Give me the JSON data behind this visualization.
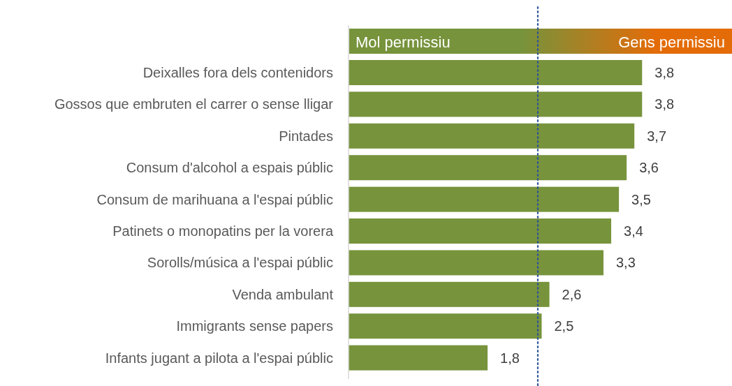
{
  "chart_data": {
    "type": "bar",
    "orientation": "horizontal",
    "categories": [
      "Deixalles fora dels contenidors",
      "Gossos que embruten el carrer o sense lligar",
      "Pintades",
      "Consum d'alcohol a espais públic",
      "Consum de marihuana a l'espai públic",
      "Patinets o monopatins per la vorera",
      "Sorolls/música a l'espai públic",
      "Venda ambulant",
      "Immigrants sense papers",
      "Infants jugant a pilota a l'espai públic"
    ],
    "series": [
      {
        "color": "#77933c",
        "values": [
          3.8,
          3.8,
          3.7,
          3.6,
          3.5,
          3.4,
          3.3,
          2.6,
          2.5,
          1.8
        ],
        "value_labels": [
          "3,8",
          "3,8",
          "3,7",
          "3,6",
          "3,5",
          "3,4",
          "3,3",
          "2,6",
          "2,5",
          "1,8"
        ]
      }
    ],
    "annotations": [
      "Mol permissiu",
      "Gens permissiu"
    ],
    "ref_lines": [
      {
        "axis": "x",
        "value": 2.45,
        "color": "#2f5597",
        "line_style": "dotted"
      }
    ],
    "tick_labels": "y"
  }
}
